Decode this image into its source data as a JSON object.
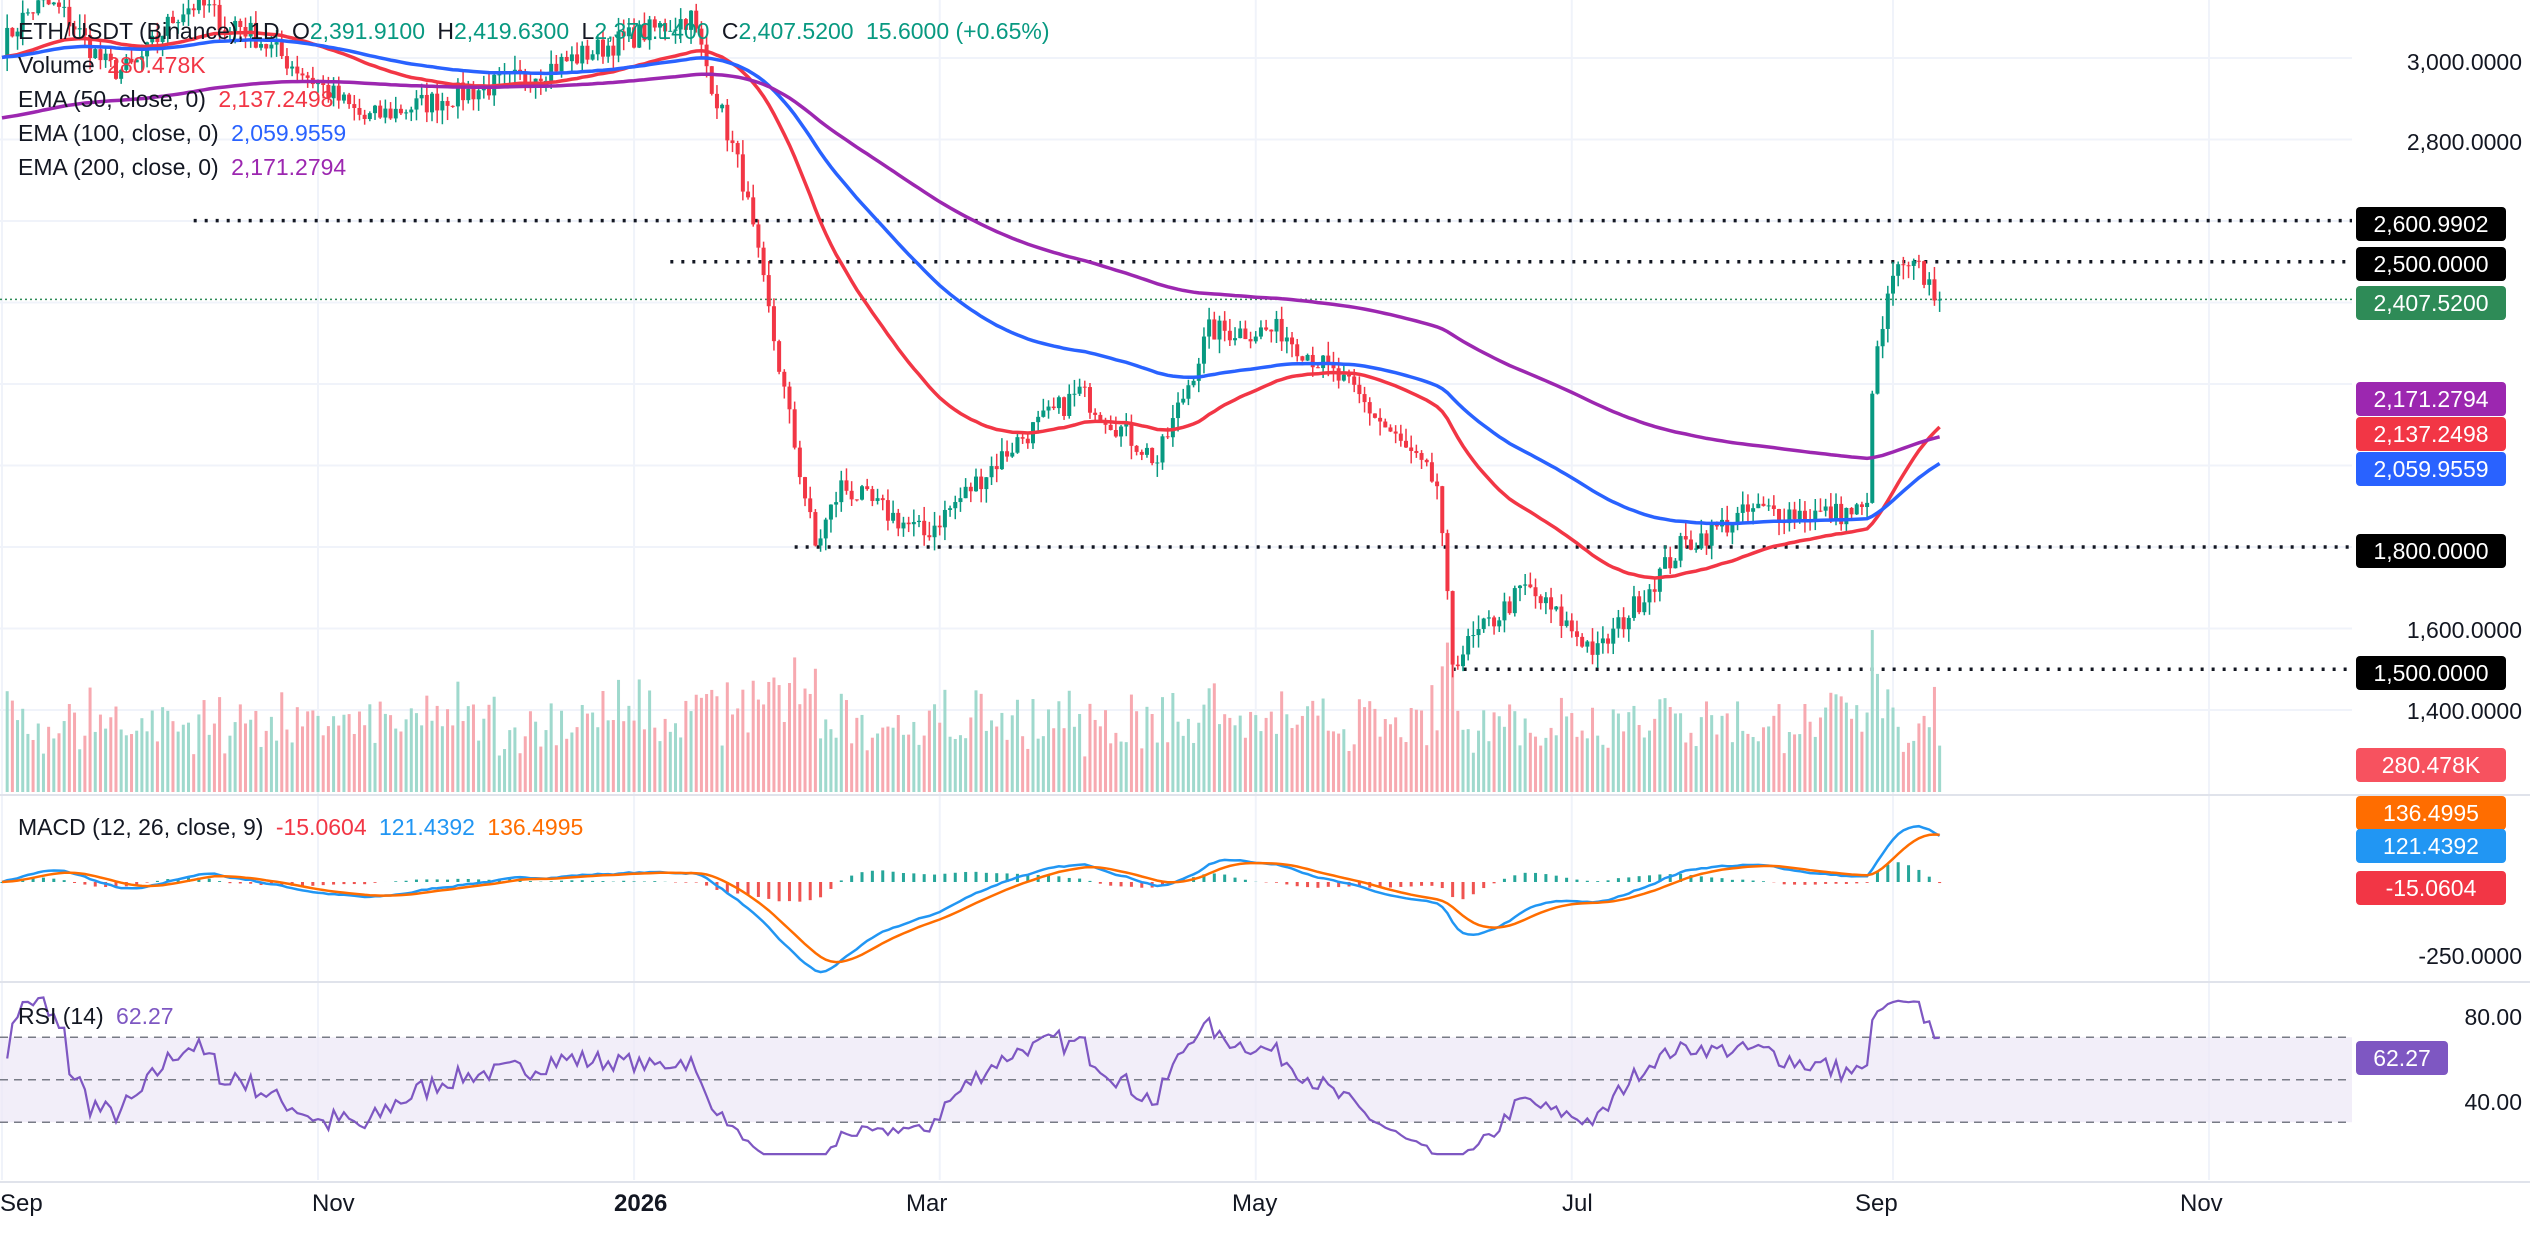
{
  "header": {
    "symbol": "ETH/USDT (Binance), 1D",
    "open_label": "O",
    "open": "2,391.9100",
    "high_label": "H",
    "high": "2,419.6300",
    "low_label": "L",
    "low": "2,370.1400",
    "close_label": "C",
    "close": "2,407.5200",
    "change": "15.6000 (+0.65%)"
  },
  "legend": {
    "volume_label": "Volume",
    "volume_value": "280.478K",
    "ema50_label": "EMA (50, close, 0)",
    "ema50_value": "2,137.2498",
    "ema100_label": "EMA (100, close, 0)",
    "ema100_value": "2,059.9559",
    "ema200_label": "EMA (200, close, 0)",
    "ema200_value": "2,171.2794"
  },
  "macd_legend": {
    "label": "MACD (12, 26, close, 9)",
    "hist": "-15.0604",
    "macd": "121.4392",
    "signal": "136.4995"
  },
  "rsi_legend": {
    "label": "RSI (14)",
    "value": "62.27"
  },
  "price_axis": [
    "3,000.0000",
    "2,800.0000",
    "1,600.0000",
    "1,400.0000"
  ],
  "macd_axis": [
    "-250.0000"
  ],
  "rsi_axis": [
    "80.00",
    "40.00"
  ],
  "x_axis": [
    "Sep",
    "Nov",
    "2026",
    "Mar",
    "May",
    "Jul",
    "Sep",
    "Nov"
  ],
  "price_tags": {
    "level_2600": "2,600.9902",
    "level_2500": "2,500.0000",
    "last": "2,407.5200",
    "ema200": "2,171.2794",
    "ema50": "2,137.2498",
    "ema100": "2,059.9559",
    "level_1800": "1,800.0000",
    "level_1500": "1,500.0000",
    "volume": "280.478K"
  },
  "macd_tags": {
    "signal": "136.4995",
    "macd": "121.4392",
    "hist": "-15.0604"
  },
  "rsi_tag": "62.27",
  "colors": {
    "up": "#089981",
    "down": "#f23645",
    "ema50": "#f23645",
    "ema100": "#2962ff",
    "ema200": "#9c27b0",
    "macd": "#2196f3",
    "signal": "#ff6d00",
    "rsi": "#7e57c2",
    "rsi_band": "#ede7f6",
    "change_green": "#2e7d32"
  },
  "chart_data": [
    {
      "type": "candlestick",
      "title": "ETH/USDT (Binance), 1D",
      "x": [
        "2025-09",
        "2025-11",
        "2026-01",
        "2026-03",
        "2026-05",
        "2026-07",
        "2026-09",
        "2026-11"
      ],
      "y_axis_ticks": [
        1400,
        1600,
        2800,
        3000
      ],
      "horizontal_levels": [
        2600.9902,
        2500,
        1800,
        1500
      ],
      "last_close": 2407.52,
      "anchors": [
        {
          "date": "2025-10-15",
          "close": 3100
        },
        {
          "date": "2025-11-10",
          "close": 2850
        },
        {
          "date": "2025-12-10",
          "close": 2950
        },
        {
          "date": "2025-12-31",
          "close": 3050
        },
        {
          "date": "2026-01-12",
          "close": 3100
        },
        {
          "date": "2026-01-22",
          "close": 2700
        },
        {
          "date": "2026-02-01",
          "close": 2050
        },
        {
          "date": "2026-02-05",
          "close": 1800
        },
        {
          "date": "2026-02-10",
          "close": 1950
        },
        {
          "date": "2026-02-26",
          "close": 1830
        },
        {
          "date": "2026-03-16",
          "close": 2060
        },
        {
          "date": "2026-03-28",
          "close": 2180
        },
        {
          "date": "2026-04-12",
          "close": 2010
        },
        {
          "date": "2026-04-22",
          "close": 2330
        },
        {
          "date": "2026-05-06",
          "close": 2330
        },
        {
          "date": "2026-05-20",
          "close": 2180
        },
        {
          "date": "2026-06-05",
          "close": 1950
        },
        {
          "date": "2026-06-08",
          "close": 1520
        },
        {
          "date": "2026-06-22",
          "close": 1700
        },
        {
          "date": "2026-07-06",
          "close": 1540
        },
        {
          "date": "2026-07-22",
          "close": 1800
        },
        {
          "date": "2026-08-05",
          "close": 1890
        },
        {
          "date": "2026-08-20",
          "close": 1880
        },
        {
          "date": "2026-08-27",
          "close": 1890
        },
        {
          "date": "2026-08-28",
          "close": 2200
        },
        {
          "date": "2026-09-01",
          "close": 2470
        },
        {
          "date": "2026-09-06",
          "close": 2480
        },
        {
          "date": "2026-09-10",
          "close": 2407.52
        }
      ],
      "series": [
        {
          "name": "EMA (50, close, 0)",
          "last": 2137.2498
        },
        {
          "name": "EMA (100, close, 0)",
          "last": 2059.9559
        },
        {
          "name": "EMA (200, close, 0)",
          "last": 2171.2794
        },
        {
          "name": "Volume",
          "last": "280.478K"
        }
      ]
    },
    {
      "type": "line",
      "title": "MACD (12, 26, close, 9)",
      "series": [
        {
          "name": "MACD",
          "last": 121.4392
        },
        {
          "name": "Signal",
          "last": 136.4995
        },
        {
          "name": "Histogram",
          "last": -15.0604
        }
      ],
      "y_axis_ticks": [
        -250
      ]
    },
    {
      "type": "line",
      "title": "RSI (14)",
      "series": [
        {
          "name": "RSI",
          "last": 62.27
        }
      ],
      "y_axis_ticks": [
        40,
        80
      ],
      "bands": [
        30,
        50,
        70
      ]
    }
  ]
}
